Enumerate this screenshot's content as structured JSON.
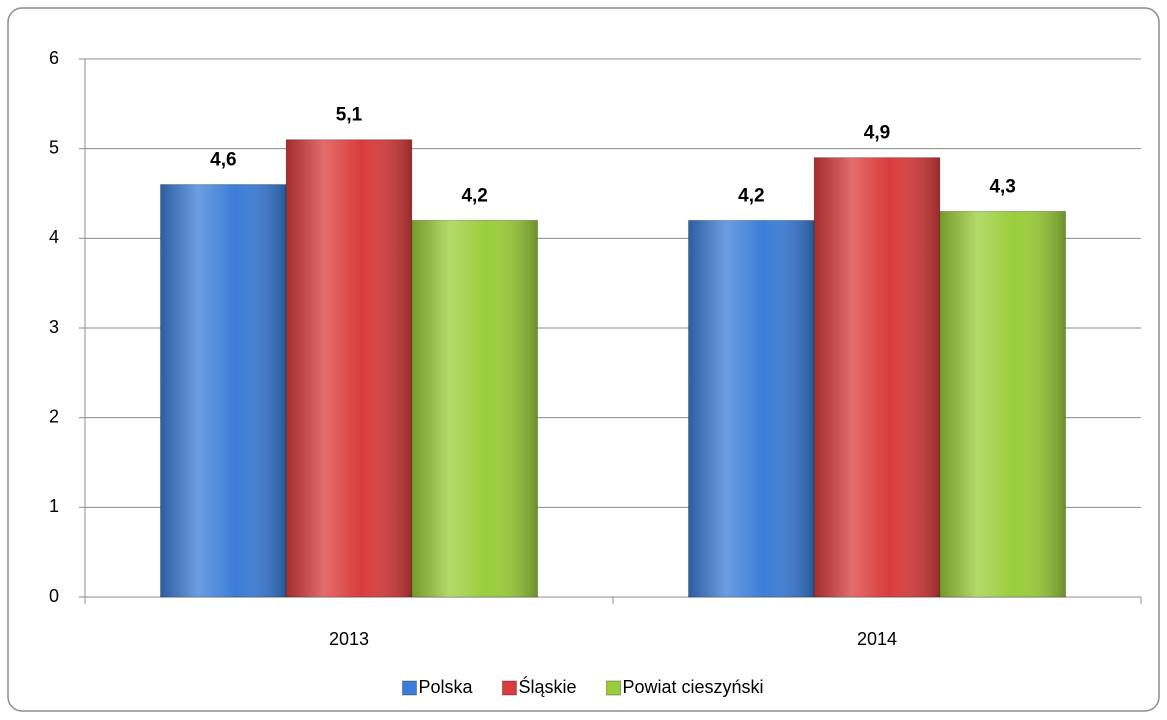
{
  "chart_data": {
    "type": "bar",
    "categories": [
      "2013",
      "2014"
    ],
    "series": [
      {
        "name": "Polska",
        "color": "#3b7dd8",
        "values": [
          4.6,
          4.2
        ],
        "value_labels": [
          "4,6",
          "4,2"
        ]
      },
      {
        "name": "Śląskie",
        "color": "#d93c3c",
        "values": [
          5.1,
          4.9
        ],
        "value_labels": [
          "5,1",
          "4,9"
        ]
      },
      {
        "name": "Powiat cieszyński",
        "color": "#9acd3a",
        "values": [
          4.2,
          4.3
        ],
        "value_labels": [
          "4,2",
          "4,3"
        ]
      }
    ],
    "ylim": [
      0,
      6
    ],
    "yticks": [
      0,
      1,
      2,
      3,
      4,
      5,
      6
    ],
    "grid": true,
    "legend": "bottom"
  }
}
